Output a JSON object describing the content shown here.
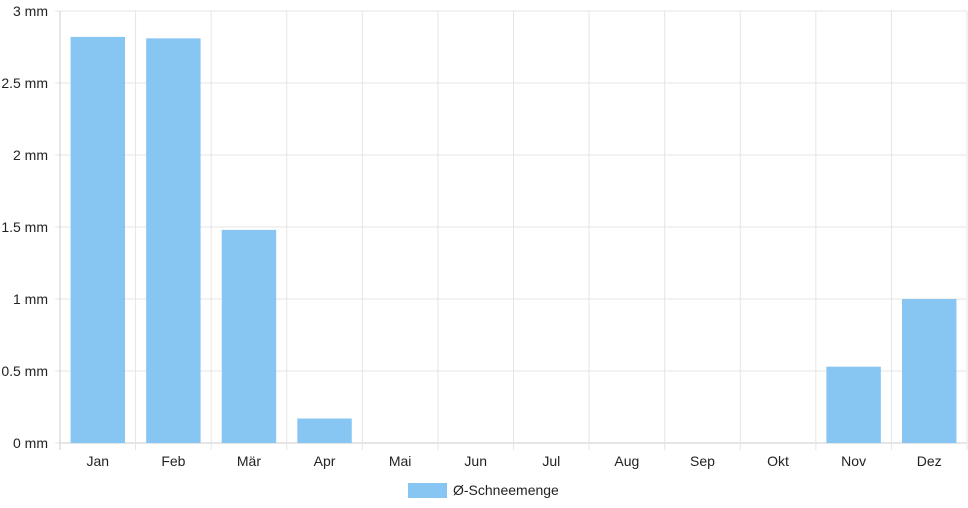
{
  "chart_data": {
    "type": "bar",
    "categories": [
      "Jan",
      "Feb",
      "Mär",
      "Apr",
      "Mai",
      "Jun",
      "Jul",
      "Aug",
      "Sep",
      "Okt",
      "Nov",
      "Dez"
    ],
    "series": [
      {
        "name": "Ø-Schneemenge",
        "values": [
          2.82,
          2.81,
          1.48,
          0.17,
          0,
          0,
          0,
          0,
          0,
          0,
          0.53,
          1.0
        ],
        "color": "#87c5f2"
      }
    ],
    "y_ticks": [
      {
        "value": 0,
        "label": "0 mm"
      },
      {
        "value": 0.5,
        "label": "0.5 mm"
      },
      {
        "value": 1,
        "label": "1 mm"
      },
      {
        "value": 1.5,
        "label": "1.5 mm"
      },
      {
        "value": 2,
        "label": "2 mm"
      },
      {
        "value": 2.5,
        "label": "2.5 mm"
      },
      {
        "value": 3,
        "label": "3 mm"
      }
    ],
    "ylim": [
      0,
      3
    ],
    "unit": "mm",
    "grid": true,
    "legend_position": "bottom-center",
    "colors": {
      "grid": "#e5e5e5",
      "axis": "#cccccc",
      "text": "#222222"
    }
  }
}
